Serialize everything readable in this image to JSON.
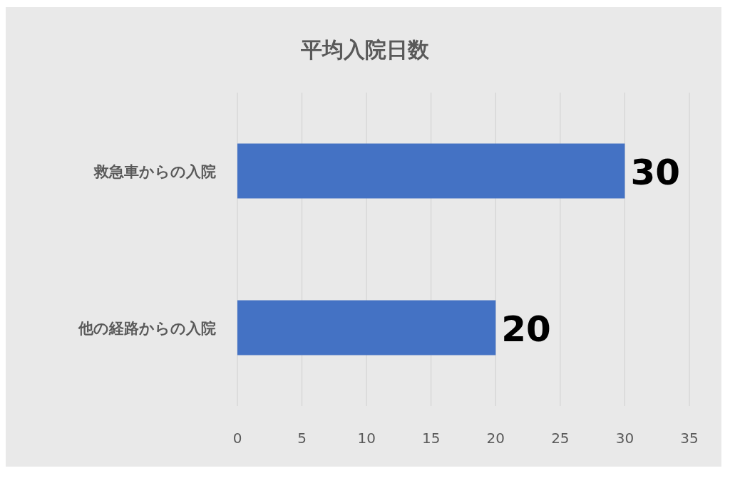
{
  "chart_data": {
    "type": "bar",
    "orientation": "horizontal",
    "title": "平均入院日数",
    "categories": [
      "救急車からの入院",
      "他の経路からの入院"
    ],
    "values": [
      30,
      20
    ],
    "color": "#4472c4",
    "xlim": [
      0,
      35
    ],
    "xticks": [
      0,
      5,
      10,
      15,
      20,
      25,
      30,
      35
    ],
    "grid": "x",
    "data_labels": true
  }
}
